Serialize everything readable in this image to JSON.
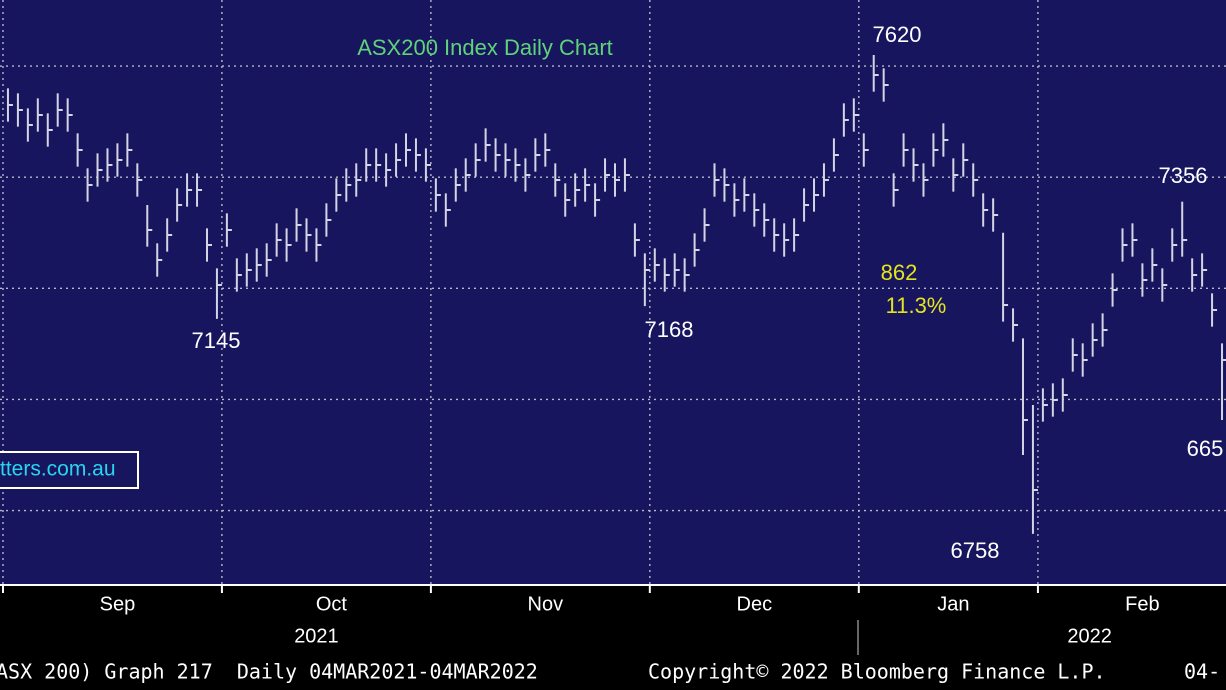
{
  "chart_data": {
    "type": "ohlc",
    "title": "ASX200 Index Daily Chart",
    "color": "#d4d4e4",
    "close": [
      7530,
      7521,
      7494,
      7512,
      7485,
      7521,
      7512,
      7449,
      7386,
      7413,
      7422,
      7431,
      7449,
      7395,
      7305,
      7251,
      7296,
      7350,
      7377,
      7377,
      7278,
      7206,
      7305,
      7224,
      7233,
      7242,
      7251,
      7287,
      7278,
      7314,
      7296,
      7278,
      7323,
      7368,
      7386,
      7395,
      7422,
      7422,
      7413,
      7431,
      7449,
      7440,
      7422,
      7368,
      7341,
      7386,
      7404,
      7431,
      7458,
      7440,
      7431,
      7422,
      7404,
      7440,
      7449,
      7395,
      7359,
      7377,
      7386,
      7359,
      7404,
      7395,
      7404,
      7287,
      7233,
      7242,
      7224,
      7233,
      7224,
      7269,
      7314,
      7395,
      7386,
      7359,
      7368,
      7341,
      7323,
      7296,
      7287,
      7296,
      7350,
      7368,
      7395,
      7440,
      7503,
      7512,
      7449,
      7584,
      7566,
      7377,
      7449,
      7422,
      7395,
      7449,
      7467,
      7404,
      7431,
      7395,
      7341,
      7332,
      7170,
      7134,
      6963,
      6837,
      6990,
      6999,
      7008,
      7080,
      7071,
      7107,
      7125,
      7197,
      7278,
      7287,
      7215,
      7242,
      7206,
      7278,
      7287,
      7224,
      7233,
      7161,
      7071
    ],
    "high": [
      7560,
      7551,
      7524,
      7542,
      7515,
      7551,
      7542,
      7479,
      7416,
      7443,
      7452,
      7461,
      7479,
      7425,
      7350,
      7281,
      7326,
      7380,
      7407,
      7407,
      7308,
      7236,
      7335,
      7254,
      7263,
      7272,
      7281,
      7317,
      7308,
      7344,
      7326,
      7308,
      7353,
      7398,
      7416,
      7425,
      7452,
      7452,
      7443,
      7461,
      7479,
      7470,
      7452,
      7398,
      7371,
      7416,
      7434,
      7461,
      7488,
      7470,
      7461,
      7452,
      7434,
      7470,
      7479,
      7425,
      7389,
      7407,
      7416,
      7389,
      7434,
      7425,
      7434,
      7317,
      7263,
      7272,
      7254,
      7263,
      7254,
      7299,
      7344,
      7425,
      7416,
      7389,
      7398,
      7371,
      7353,
      7326,
      7317,
      7326,
      7380,
      7398,
      7425,
      7470,
      7533,
      7542,
      7479,
      7620,
      7596,
      7407,
      7479,
      7452,
      7425,
      7479,
      7497,
      7434,
      7461,
      7425,
      7371,
      7362,
      7300,
      7164,
      7110,
      6990,
      7020,
      7029,
      7038,
      7110,
      7101,
      7137,
      7155,
      7227,
      7308,
      7317,
      7245,
      7272,
      7236,
      7308,
      7356,
      7254,
      7263,
      7191,
      7101
    ],
    "low": [
      7500,
      7491,
      7464,
      7482,
      7455,
      7491,
      7482,
      7419,
      7356,
      7383,
      7392,
      7401,
      7419,
      7365,
      7275,
      7221,
      7266,
      7320,
      7347,
      7347,
      7248,
      7145,
      7275,
      7194,
      7203,
      7212,
      7221,
      7257,
      7248,
      7284,
      7266,
      7248,
      7293,
      7338,
      7356,
      7365,
      7392,
      7392,
      7383,
      7401,
      7419,
      7410,
      7392,
      7338,
      7311,
      7356,
      7374,
      7401,
      7428,
      7410,
      7401,
      7392,
      7374,
      7410,
      7419,
      7365,
      7329,
      7347,
      7356,
      7329,
      7374,
      7365,
      7374,
      7257,
      7168,
      7212,
      7194,
      7203,
      7194,
      7239,
      7284,
      7365,
      7356,
      7329,
      7338,
      7311,
      7293,
      7266,
      7257,
      7266,
      7320,
      7338,
      7365,
      7410,
      7473,
      7482,
      7419,
      7554,
      7536,
      7347,
      7419,
      7392,
      7365,
      7419,
      7437,
      7374,
      7401,
      7365,
      7311,
      7302,
      7140,
      7104,
      6900,
      6758,
      6960,
      6969,
      6978,
      7050,
      7041,
      7077,
      7095,
      7167,
      7248,
      7257,
      7185,
      7212,
      7176,
      7248,
      7257,
      7194,
      7203,
      7131,
      6963
    ],
    "xlim": [
      -0.8,
      122.4
    ],
    "ylim": [
      6666,
      7719
    ],
    "ygrid": [
      6800,
      7000,
      7200,
      7400,
      7600
    ],
    "xgrid": [
      -0.5,
      21.5,
      42.5,
      64.5,
      85.5,
      103.5
    ],
    "xticks": [
      {
        "value": 11,
        "label": "Sep"
      },
      {
        "value": 32.5,
        "label": "Oct"
      },
      {
        "value": 54,
        "label": "Nov"
      },
      {
        "value": 75,
        "label": "Dec"
      },
      {
        "value": 95,
        "label": "Jan"
      },
      {
        "value": 114,
        "label": "Feb"
      }
    ],
    "years": [
      {
        "value": 31,
        "label": "2021"
      },
      {
        "value": 108.7,
        "label": "2022"
      }
    ],
    "annotations": [
      "7620",
      "7356",
      "7145",
      "7168",
      "6758",
      "665",
      "862",
      "11.3%"
    ]
  },
  "watermark": "tters.com.au",
  "footer": [
    "ASX 200) Graph 217  Daily 04MAR2021-04MAR2022",
    "Copyright© 2022 Bloomberg Finance L.P.",
    "04-"
  ]
}
